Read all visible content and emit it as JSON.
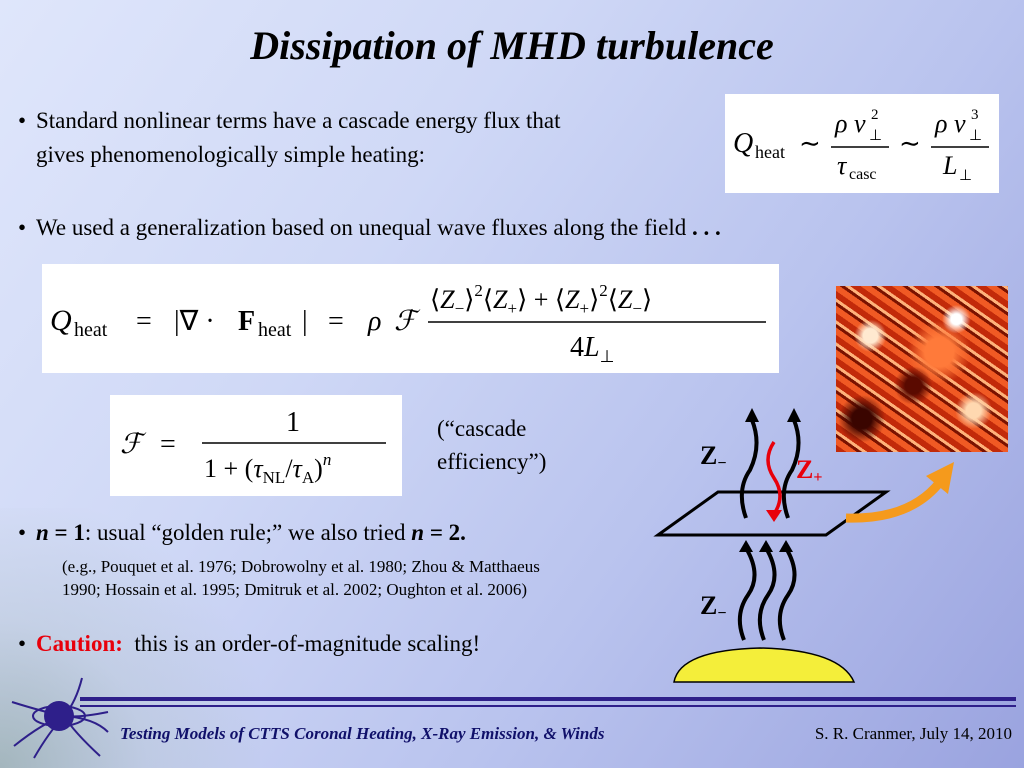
{
  "title": "Dissipation of MHD turbulence",
  "bullets": {
    "b1_line1": "Standard nonlinear terms have a cascade energy flux that",
    "b1_line2": "gives phenomenologically simple heating:",
    "b2_text": "We used a generalization based on unequal wave fluxes along the field",
    "b2_ellipsis": ". . .",
    "b3_n": "n",
    "b3_eq": " = 1",
    "b3_text": ": usual “golden rule;” we also tried ",
    "b3_n2": "n",
    "b3_eq2": " = 2.",
    "b3_ref1": "(e.g., Pouquet et al. 1976; Dobrowolny et al. 1980; Zhou & Matthaeus",
    "b3_ref2": "1990; Hossain et al. 1995; Dmitruk et al. 2002; Oughton et al. 2006)",
    "b4_caution": "Caution:",
    "b4_text": "this is an order-of-magnitude scaling!"
  },
  "cascade_note": {
    "line1": "(“cascade",
    "line2": "efficiency”)"
  },
  "diagram": {
    "z_minus_top": "Z",
    "z_plus": "Z",
    "z_minus_bottom": "Z"
  },
  "footer": {
    "left": "Testing Models of CTTS Coronal Heating, X-Ray Emission, & Winds",
    "right": "S. R. Cranmer, July 14, 2010"
  },
  "colors": {
    "caution": "#e8000b",
    "z_plus": "#e8000b",
    "arrow_orange": "#f59a1c",
    "sun_yellow": "#f4ee3a",
    "logo": "#2e1f8a"
  }
}
